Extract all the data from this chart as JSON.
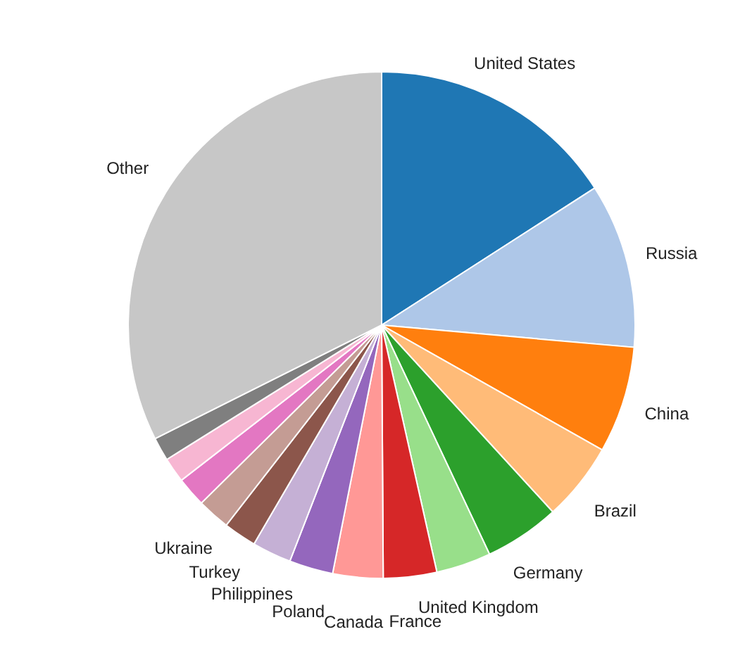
{
  "chart_data": {
    "type": "pie",
    "categories": [
      "United States",
      "Russia",
      "China",
      "Brazil",
      "Germany",
      "United Kingdom",
      "France",
      "Canada",
      "Poland",
      "Philippines",
      "Turkey",
      "Ukraine",
      null,
      null,
      null,
      "Other"
    ],
    "values": [
      15.9,
      10.5,
      6.8,
      5.0,
      4.8,
      3.5,
      3.4,
      3.2,
      2.8,
      2.5,
      2.1,
      2.1,
      1.9,
      1.6,
      1.5,
      32.4
    ],
    "colors": [
      "#1f77b4",
      "#aec7e8",
      "#ff7f0e",
      "#ffbb78",
      "#2ca02c",
      "#98df8a",
      "#d62728",
      "#ff9896",
      "#9467bd",
      "#c5b0d5",
      "#8c564b",
      "#c49c94",
      "#e377c2",
      "#f7b6d2",
      "#7f7f7f",
      "#c7c7c7"
    ]
  }
}
